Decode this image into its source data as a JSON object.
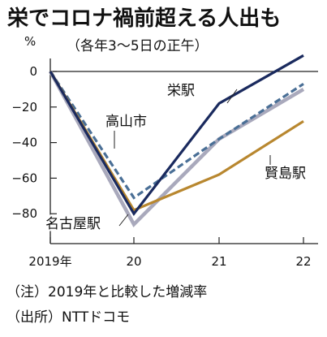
{
  "title": "栄でコロナ禍前超える人出も",
  "subtitle": "（各年3～5日の正午）",
  "note": "（注）2019年と比較した増減率",
  "source": "（出所）NTTドコモ",
  "chart_data": {
    "type": "line",
    "unit": "%",
    "categories": [
      "2019年",
      "20",
      "21",
      "22"
    ],
    "ylim": [
      -90,
      10
    ],
    "yticks": [
      0,
      -20,
      -40,
      -60,
      -80
    ],
    "grid": false,
    "series": [
      {
        "name": "栄駅",
        "values": [
          0,
          -80,
          -18,
          9
        ],
        "color": "#1a2a5e",
        "dash": false
      },
      {
        "name": "高山市",
        "values": [
          0,
          -71,
          -38,
          -7
        ],
        "color": "#4a6f96",
        "dash": true
      },
      {
        "name": "名古屋駅",
        "values": [
          0,
          -86,
          -38,
          -10
        ],
        "color": "#a9a9bc",
        "dash": false
      },
      {
        "name": "賢島駅",
        "values": [
          0,
          -78,
          -58,
          -28
        ],
        "color": "#b8872f",
        "dash": false
      }
    ]
  }
}
